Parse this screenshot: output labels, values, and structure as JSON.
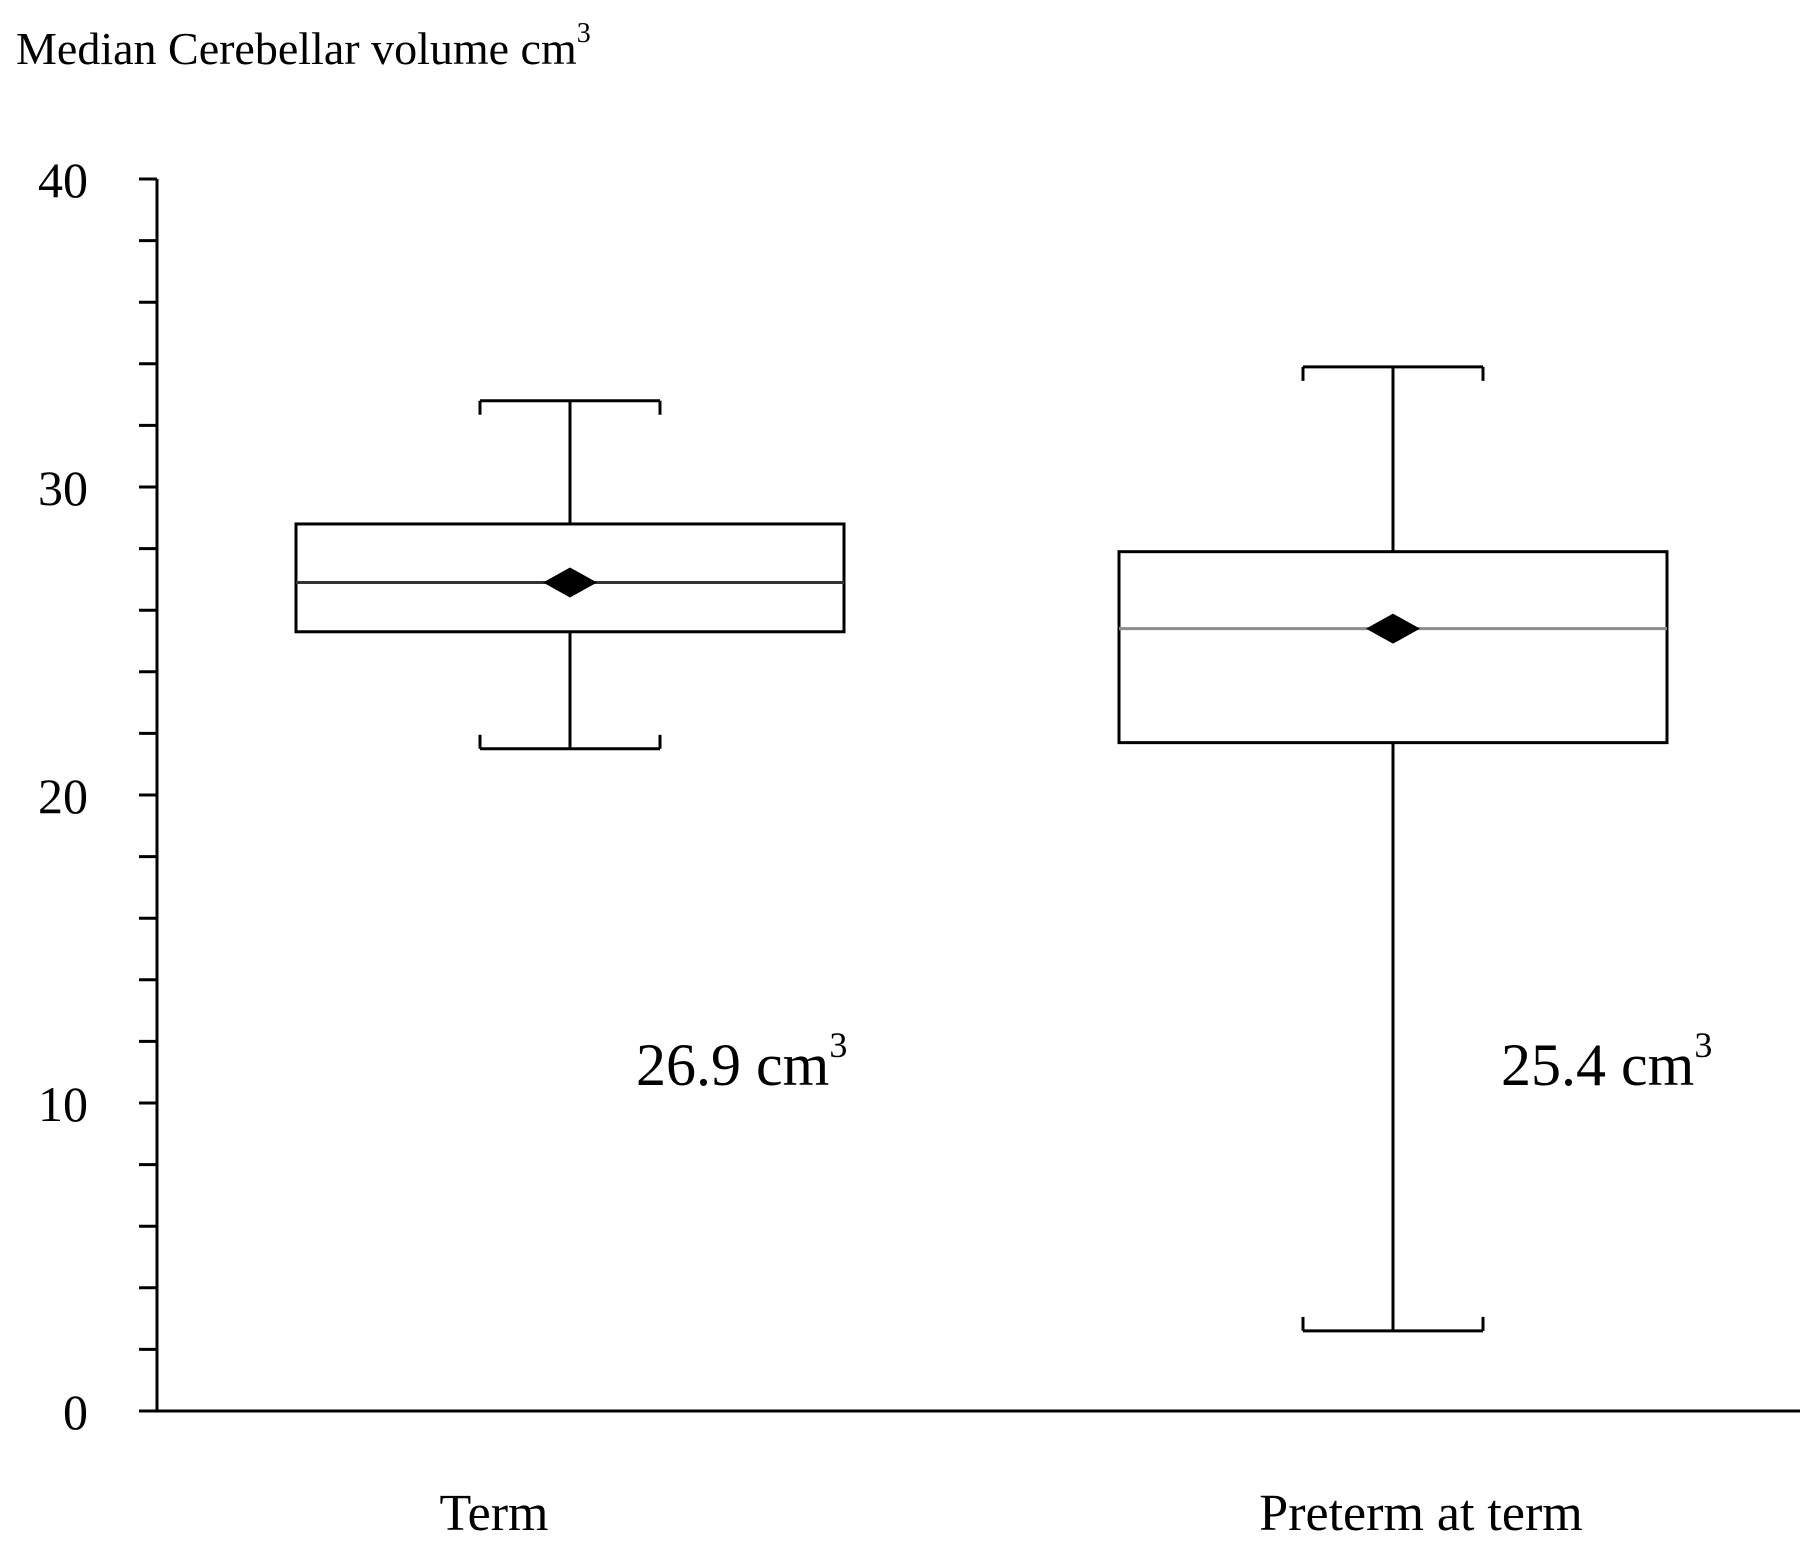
{
  "chart_data": {
    "type": "box",
    "title": "Median Cerebellar volume cm",
    "title_superscript": "3",
    "xlabel": "",
    "ylabel": "",
    "ylim": [
      0,
      40
    ],
    "yticks_major": [
      0,
      10,
      20,
      30,
      40
    ],
    "ytick_labels": [
      "0",
      "10",
      "20",
      "30",
      "40"
    ],
    "ytick_minor_step": 2,
    "grid": false,
    "legend": "none",
    "categories": [
      "Term",
      "Preterm at term"
    ],
    "boxes": [
      {
        "category": "Term",
        "whisker_low": 21.5,
        "q1": 25.3,
        "median": 26.9,
        "q3": 28.8,
        "whisker_high": 32.8,
        "median_line_color": "#333333",
        "annotation": "26.9 cm",
        "annotation_superscript": "3"
      },
      {
        "category": "Preterm at term",
        "whisker_low": 2.6,
        "q1": 21.7,
        "median": 25.4,
        "q3": 27.9,
        "whisker_high": 33.9,
        "median_line_color": "#8c8c8c",
        "annotation": "25.4 cm",
        "annotation_superscript": "3"
      }
    ],
    "colors": {
      "axis": "#000000",
      "box_stroke": "#000000",
      "box_fill": "#ffffff",
      "marker": "#000000"
    }
  }
}
